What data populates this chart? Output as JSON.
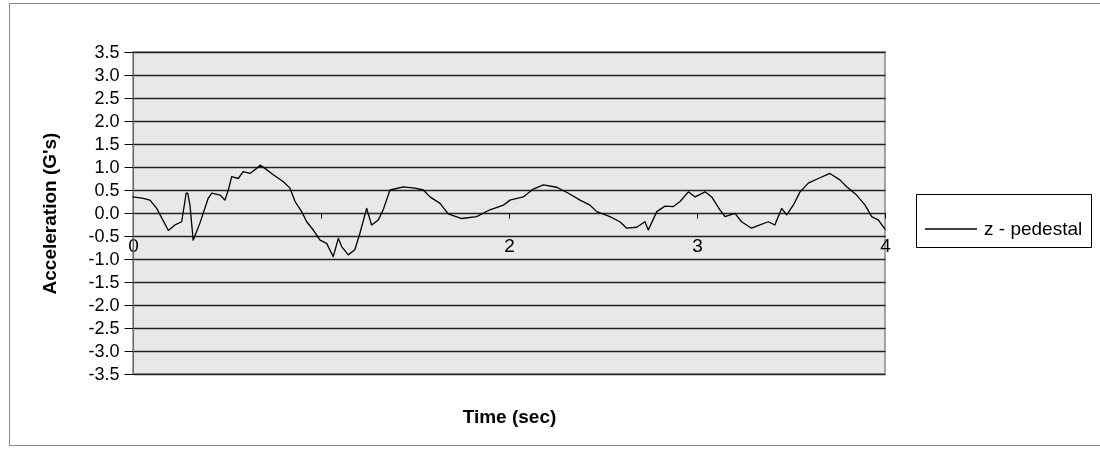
{
  "chart_data": {
    "type": "line",
    "xlabel": "Time (sec)",
    "ylabel": "Acceleration (G's)",
    "x": [
      0,
      0.055,
      0.09,
      0.126,
      0.188,
      0.223,
      0.259,
      0.277,
      0.282,
      0.291,
      0.303,
      0.32,
      0.356,
      0.4,
      0.419,
      0.463,
      0.489,
      0.507,
      0.525,
      0.56,
      0.586,
      0.622,
      0.658,
      0.676,
      0.702,
      0.746,
      0.8,
      0.835,
      0.862,
      0.897,
      0.924,
      0.959,
      0.995,
      1.03,
      1.065,
      1.092,
      1.11,
      1.145,
      1.18,
      1.207,
      1.243,
      1.269,
      1.305,
      1.331,
      1.367,
      1.438,
      1.5,
      1.544,
      1.58,
      1.633,
      1.677,
      1.748,
      1.828,
      1.899,
      1.97,
      2.005,
      2.076,
      2.129,
      2.183,
      2.254,
      2.316,
      2.378,
      2.431,
      2.467,
      2.537,
      2.59,
      2.626,
      2.679,
      2.723,
      2.741,
      2.786,
      2.83,
      2.874,
      2.91,
      2.954,
      2.99,
      3.043,
      3.078,
      3.122,
      3.149,
      3.202,
      3.237,
      3.29,
      3.335,
      3.379,
      3.414,
      3.45,
      3.477,
      3.512,
      3.548,
      3.592,
      3.645,
      3.707,
      3.76,
      3.796,
      3.849,
      3.894,
      3.929,
      3.964,
      4.0
    ],
    "series": [
      {
        "name": "z - pedestal",
        "color": "#000000",
        "values": [
          0.35,
          0.32,
          0.28,
          0.1,
          -0.38,
          -0.26,
          -0.19,
          0.28,
          0.43,
          0.43,
          0.17,
          -0.59,
          -0.22,
          0.32,
          0.43,
          0.39,
          0.28,
          0.5,
          0.79,
          0.75,
          0.9,
          0.86,
          0.97,
          1.04,
          0.97,
          0.83,
          0.68,
          0.54,
          0.25,
          0.03,
          -0.19,
          -0.37,
          -0.59,
          -0.66,
          -0.95,
          -0.55,
          -0.73,
          -0.91,
          -0.8,
          -0.44,
          0.1,
          -0.26,
          -0.15,
          0.07,
          0.5,
          0.57,
          0.54,
          0.5,
          0.35,
          0.21,
          -0.02,
          -0.12,
          -0.08,
          0.07,
          0.17,
          0.28,
          0.35,
          0.52,
          0.61,
          0.56,
          0.43,
          0.28,
          0.17,
          0.03,
          -0.08,
          -0.19,
          -0.33,
          -0.31,
          -0.19,
          -0.37,
          0.03,
          0.15,
          0.14,
          0.25,
          0.46,
          0.35,
          0.46,
          0.35,
          0.07,
          -0.08,
          -0.01,
          -0.19,
          -0.33,
          -0.26,
          -0.19,
          -0.26,
          0.1,
          -0.04,
          0.17,
          0.46,
          0.65,
          0.75,
          0.86,
          0.72,
          0.57,
          0.39,
          0.17,
          -0.08,
          -0.15,
          -0.35
        ]
      }
    ],
    "xlim": [
      0,
      4
    ],
    "xticks": [
      0,
      {
        "value": 1,
        "label": null
      },
      2,
      3,
      4
    ],
    "ylim": [
      -3.5,
      3.5
    ],
    "yticks": [
      -3.5,
      {
        "value": -3,
        "label": "-3.0"
      },
      -2.5,
      {
        "value": -2,
        "label": "-2.0"
      },
      -1.5,
      {
        "value": -1,
        "label": "-1.0"
      },
      -0.5,
      {
        "value": 0,
        "label": "0.0"
      },
      0.5,
      {
        "value": 1,
        "label": "1.0"
      },
      1.5,
      {
        "value": 2,
        "label": "2.0"
      },
      2.5,
      {
        "value": 3,
        "label": "3.0"
      },
      3.5
    ],
    "grid": "y",
    "legend": "right"
  }
}
